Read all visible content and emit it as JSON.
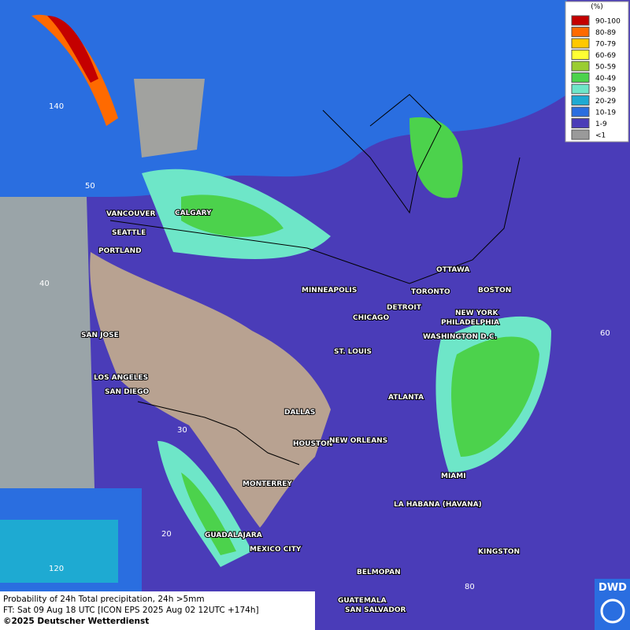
{
  "legend": {
    "title": "(%)",
    "entries": [
      {
        "label": "90-100",
        "color": "#c40000"
      },
      {
        "label": "80-89",
        "color": "#ff6a00"
      },
      {
        "label": "70-79",
        "color": "#ffc800"
      },
      {
        "label": "60-69",
        "color": "#ffff33"
      },
      {
        "label": "50-59",
        "color": "#9acd32"
      },
      {
        "label": "40-49",
        "color": "#4cd24c"
      },
      {
        "label": "30-39",
        "color": "#6ee6c8"
      },
      {
        "label": "20-29",
        "color": "#1eaad2"
      },
      {
        "label": "10-19",
        "color": "#2a6ee0"
      },
      {
        "label": "1-9",
        "color": "#4a3cb8"
      },
      {
        "label": "<1",
        "color": "#9a9a9a"
      }
    ]
  },
  "cities": [
    "VANCOUVER",
    "CALGARY",
    "SEATTLE",
    "PORTLAND",
    "MINNEAPOLIS",
    "OTTAWA",
    "TORONTO",
    "BOSTON",
    "DETROIT",
    "NEW YORK",
    "PHILADELPHIA",
    "CHICAGO",
    "WASHINGTON D.C.",
    "SAN JOSE",
    "ST. LOUIS",
    "LOS ANGELES",
    "SAN DIEGO",
    "ATLANTA",
    "DALLAS",
    "HOUSTON",
    "NEW ORLEANS",
    "MIAMI",
    "MONTERREY",
    "LA HABANA (HAVANA)",
    "GUADALAJARA",
    "MEXICO CITY",
    "KINGSTON",
    "BELMOPAN",
    "GUATEMALA",
    "SAN SALVADOR"
  ],
  "graticule_labels": [
    "140",
    "50",
    "40",
    "30",
    "20",
    "120",
    "60",
    "80"
  ],
  "footer": {
    "lines": [
      "Probability of 24h Total precipitation, 24h >5mm",
      "FT: Sat 09 Aug 18 UTC [ICON EPS 2025 Aug 02 12UTC +174h]",
      "©2025 Deutscher Wetterdienst"
    ]
  },
  "logo": "DWD"
}
